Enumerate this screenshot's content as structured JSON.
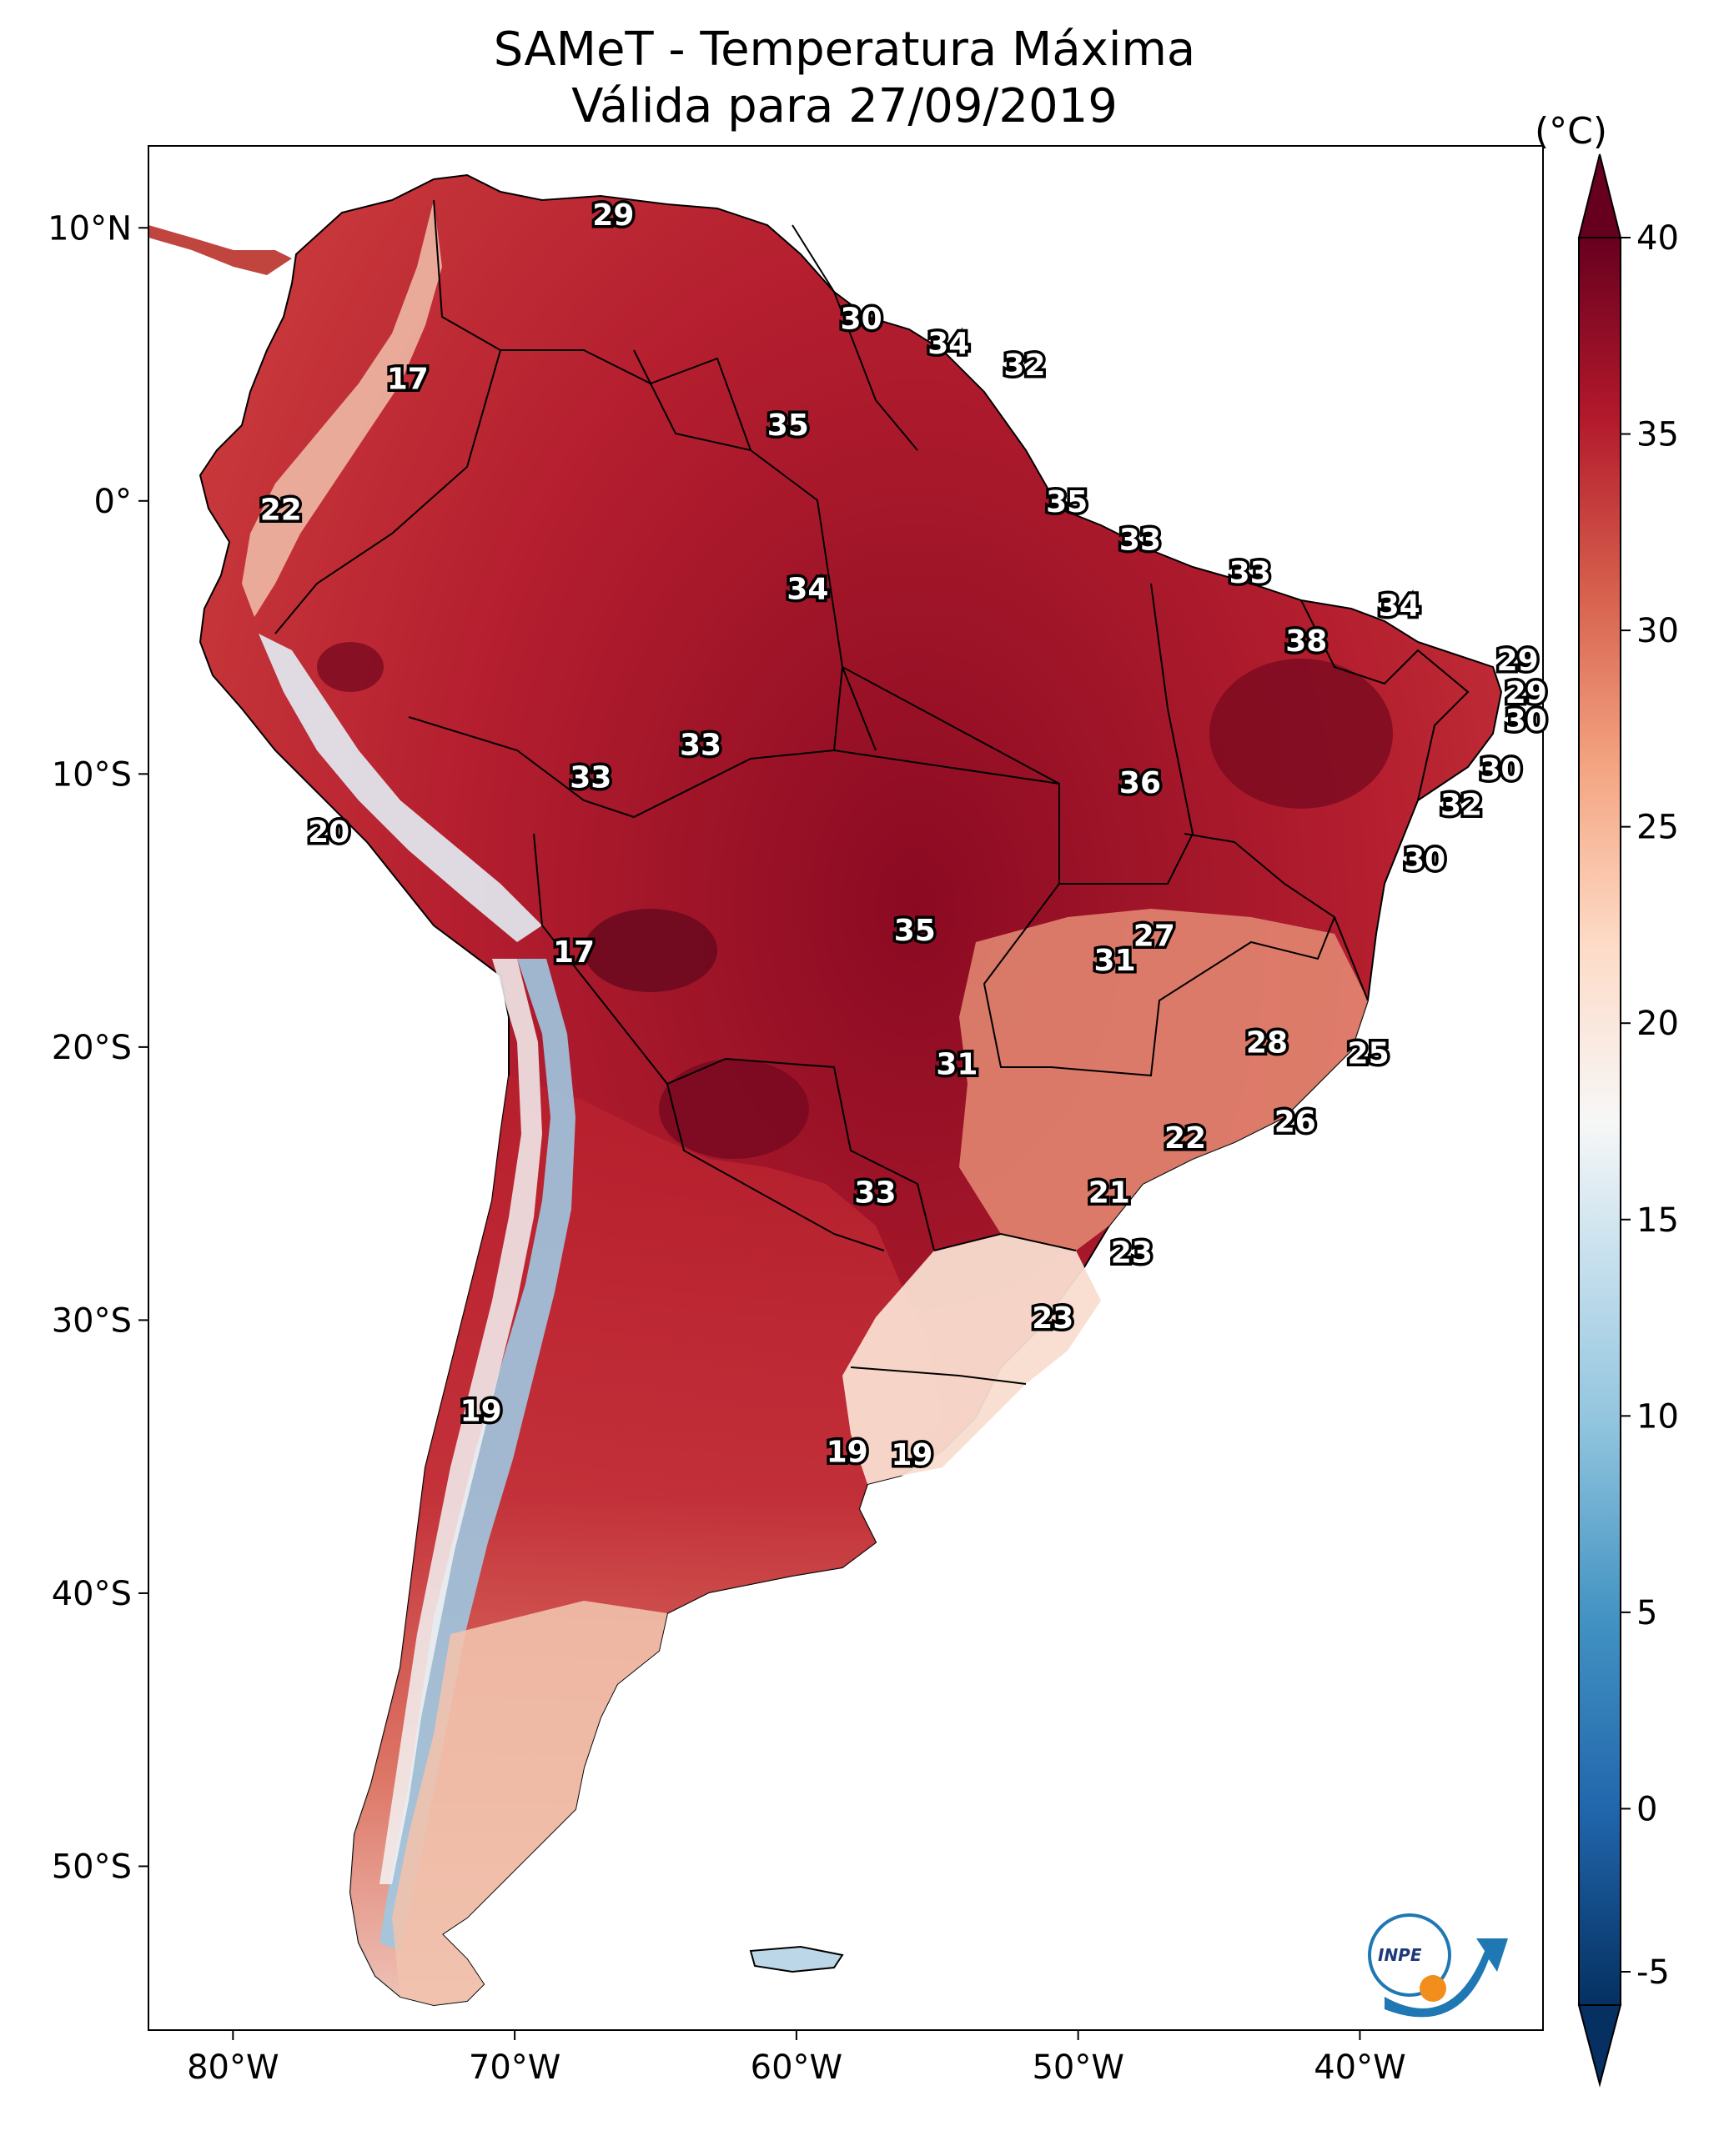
{
  "title": "SAMeT - Temperatura Máxima",
  "subtitle": "Válida para 27/09/2019",
  "colorbar": {
    "unit": "(°C)",
    "ticks": [
      "-5",
      "0",
      "5",
      "10",
      "15",
      "20",
      "25",
      "30",
      "35",
      "40"
    ],
    "range": [
      -5,
      40
    ],
    "colors": [
      "#053061",
      "#2166ac",
      "#4393c3",
      "#92c5de",
      "#d1e5f0",
      "#f7f7f7",
      "#fddbc7",
      "#f4a582",
      "#d6604d",
      "#b2182b",
      "#67001f"
    ]
  },
  "lat_ticks": [
    "10°N",
    "0°",
    "10°S",
    "20°S",
    "30°S",
    "40°S",
    "50°S"
  ],
  "lon_ticks": [
    "80°W",
    "70°W",
    "60°W",
    "50°W",
    "40°W"
  ],
  "logo": {
    "text": "INPE"
  },
  "labels": [
    {
      "t": "29",
      "lon": -66.5,
      "lat": 10.5
    },
    {
      "t": "30",
      "lon": -57.7,
      "lat": 6.7
    },
    {
      "t": "34",
      "lon": -54.6,
      "lat": 5.8
    },
    {
      "t": "32",
      "lon": -51.9,
      "lat": 5.0
    },
    {
      "t": "17",
      "lon": -73.8,
      "lat": 4.5
    },
    {
      "t": "35",
      "lon": -60.3,
      "lat": 2.8
    },
    {
      "t": "22",
      "lon": -78.3,
      "lat": -0.3
    },
    {
      "t": "35",
      "lon": -50.4,
      "lat": 0.0
    },
    {
      "t": "33",
      "lon": -47.8,
      "lat": -1.4
    },
    {
      "t": "33",
      "lon": -43.9,
      "lat": -2.6
    },
    {
      "t": "34",
      "lon": -59.6,
      "lat": -3.2
    },
    {
      "t": "34",
      "lon": -38.6,
      "lat": -3.8
    },
    {
      "t": "38",
      "lon": -41.9,
      "lat": -5.1
    },
    {
      "t": "29",
      "lon": -34.4,
      "lat": -5.8
    },
    {
      "t": "29",
      "lon": -34.1,
      "lat": -7.0
    },
    {
      "t": "30",
      "lon": -34.1,
      "lat": -8.0
    },
    {
      "t": "33",
      "lon": -63.4,
      "lat": -8.9
    },
    {
      "t": "30",
      "lon": -35.0,
      "lat": -9.8
    },
    {
      "t": "33",
      "lon": -67.3,
      "lat": -10.1
    },
    {
      "t": "36",
      "lon": -47.8,
      "lat": -10.3
    },
    {
      "t": "32",
      "lon": -36.4,
      "lat": -11.1
    },
    {
      "t": "20",
      "lon": -76.6,
      "lat": -12.1
    },
    {
      "t": "30",
      "lon": -37.7,
      "lat": -13.1
    },
    {
      "t": "35",
      "lon": -55.8,
      "lat": -15.7
    },
    {
      "t": "27",
      "lon": -47.3,
      "lat": -15.9
    },
    {
      "t": "31",
      "lon": -48.7,
      "lat": -16.8
    },
    {
      "t": "17",
      "lon": -67.9,
      "lat": -16.5
    },
    {
      "t": "28",
      "lon": -43.3,
      "lat": -19.8
    },
    {
      "t": "25",
      "lon": -39.7,
      "lat": -20.2
    },
    {
      "t": "31",
      "lon": -54.3,
      "lat": -20.6
    },
    {
      "t": "26",
      "lon": -42.3,
      "lat": -22.7
    },
    {
      "t": "22",
      "lon": -46.2,
      "lat": -23.3
    },
    {
      "t": "33",
      "lon": -57.2,
      "lat": -25.3
    },
    {
      "t": "21",
      "lon": -48.9,
      "lat": -25.3
    },
    {
      "t": "23",
      "lon": -48.1,
      "lat": -27.5
    },
    {
      "t": "23",
      "lon": -50.9,
      "lat": -29.9
    },
    {
      "t": "19",
      "lon": -71.2,
      "lat": -33.3
    },
    {
      "t": "19",
      "lon": -58.2,
      "lat": -34.8
    },
    {
      "t": "19",
      "lon": -55.9,
      "lat": -34.9
    }
  ]
}
